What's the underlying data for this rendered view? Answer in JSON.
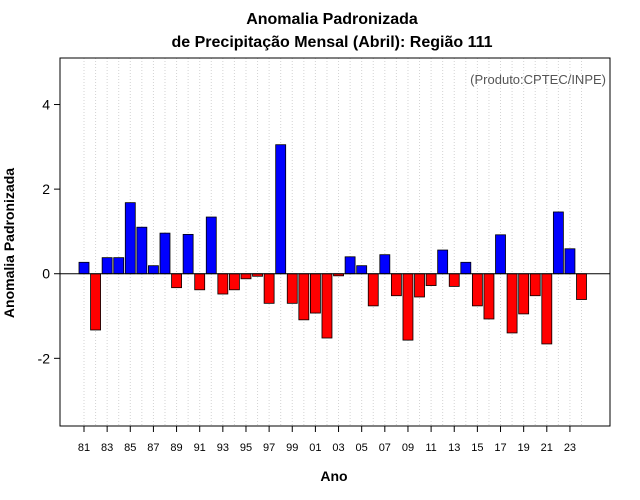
{
  "chart_data": {
    "type": "bar",
    "title": "Anomalia Padronizada",
    "subtitle": "de Precipitação Mensal (Abril): Região 111",
    "xlabel": "Ano",
    "ylabel": "Anomalia Padronizada",
    "credit": "(Produto:CPTEC/INPE)",
    "ylim": [
      -3.6,
      5.1
    ],
    "yticks": [
      -2,
      0,
      2,
      4
    ],
    "ytick_labels": [
      "-2",
      "0",
      "2",
      "4"
    ],
    "positive_color": "#0000ff",
    "negative_color": "#ff0000",
    "grid": true,
    "categories": [
      "1981",
      "1982",
      "1983",
      "1984",
      "1985",
      "1986",
      "1987",
      "1988",
      "1989",
      "1990",
      "1991",
      "1992",
      "1993",
      "1994",
      "1995",
      "1996",
      "1997",
      "1998",
      "1999",
      "2000",
      "2001",
      "2002",
      "2003",
      "2004",
      "2005",
      "2006",
      "2007",
      "2008",
      "2009",
      "2010",
      "2011",
      "2012",
      "2013",
      "2014",
      "2015",
      "2016",
      "2017",
      "2018",
      "2019",
      "2020",
      "2021",
      "2022",
      "2023",
      "2024"
    ],
    "xtick_labels": [
      "81",
      "83",
      "85",
      "87",
      "89",
      "91",
      "93",
      "95",
      "97",
      "99",
      "01",
      "03",
      "05",
      "07",
      "09",
      "11",
      "13",
      "15",
      "17",
      "19",
      "21",
      "23"
    ],
    "values": [
      0.27,
      -1.33,
      0.38,
      0.38,
      1.68,
      1.1,
      0.19,
      0.96,
      -0.33,
      0.93,
      -0.38,
      1.34,
      -0.48,
      -0.38,
      -0.12,
      -0.06,
      -0.7,
      3.05,
      -0.7,
      -1.09,
      -0.93,
      -1.52,
      -0.05,
      0.4,
      0.19,
      -0.76,
      0.45,
      -0.52,
      -1.57,
      -0.55,
      -0.28,
      0.56,
      -0.3,
      0.27,
      -0.76,
      -1.07,
      0.92,
      -1.4,
      -0.95,
      -0.52,
      -1.66,
      1.46,
      0.59,
      -0.61
    ]
  }
}
